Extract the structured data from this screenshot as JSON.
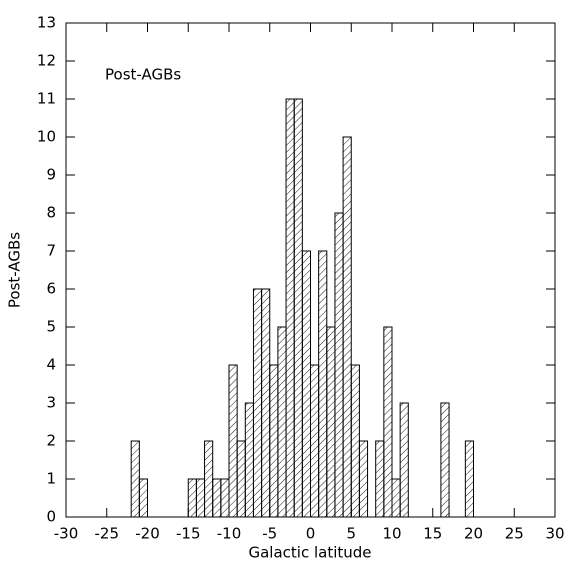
{
  "chart_data": {
    "type": "histogram",
    "xlabel": "Galactic latitude",
    "ylabel": "Post-AGBs",
    "annotation": "Post-AGBs",
    "bins": [
      -22,
      -21,
      -20,
      -19,
      -18,
      -17,
      -16,
      -15,
      -14,
      -13,
      -12,
      -11,
      -10,
      -9,
      -8,
      -7,
      -6,
      -5,
      -4,
      -3,
      -2,
      -1,
      0,
      1,
      2,
      3,
      4,
      5,
      6,
      7,
      8,
      9,
      10,
      11,
      12,
      13,
      14,
      15,
      16,
      17,
      18,
      19,
      20
    ],
    "values": [
      2,
      1,
      0,
      0,
      0,
      0,
      0,
      1,
      1,
      2,
      1,
      1,
      4,
      2,
      3,
      6,
      6,
      4,
      5,
      11,
      11,
      7,
      4,
      7,
      5,
      8,
      10,
      4,
      2,
      0,
      2,
      5,
      1,
      3,
      0,
      0,
      0,
      0,
      3,
      0,
      0,
      2
    ],
    "xlim": [
      -30,
      30
    ],
    "xticks": [
      -30,
      -25,
      -20,
      -15,
      -10,
      -5,
      0,
      5,
      10,
      15,
      20,
      25,
      30
    ],
    "ylim": [
      0,
      13
    ],
    "yticks": [
      0,
      1,
      2,
      3,
      4,
      5,
      6,
      7,
      8,
      9,
      10,
      11,
      12,
      13
    ]
  }
}
